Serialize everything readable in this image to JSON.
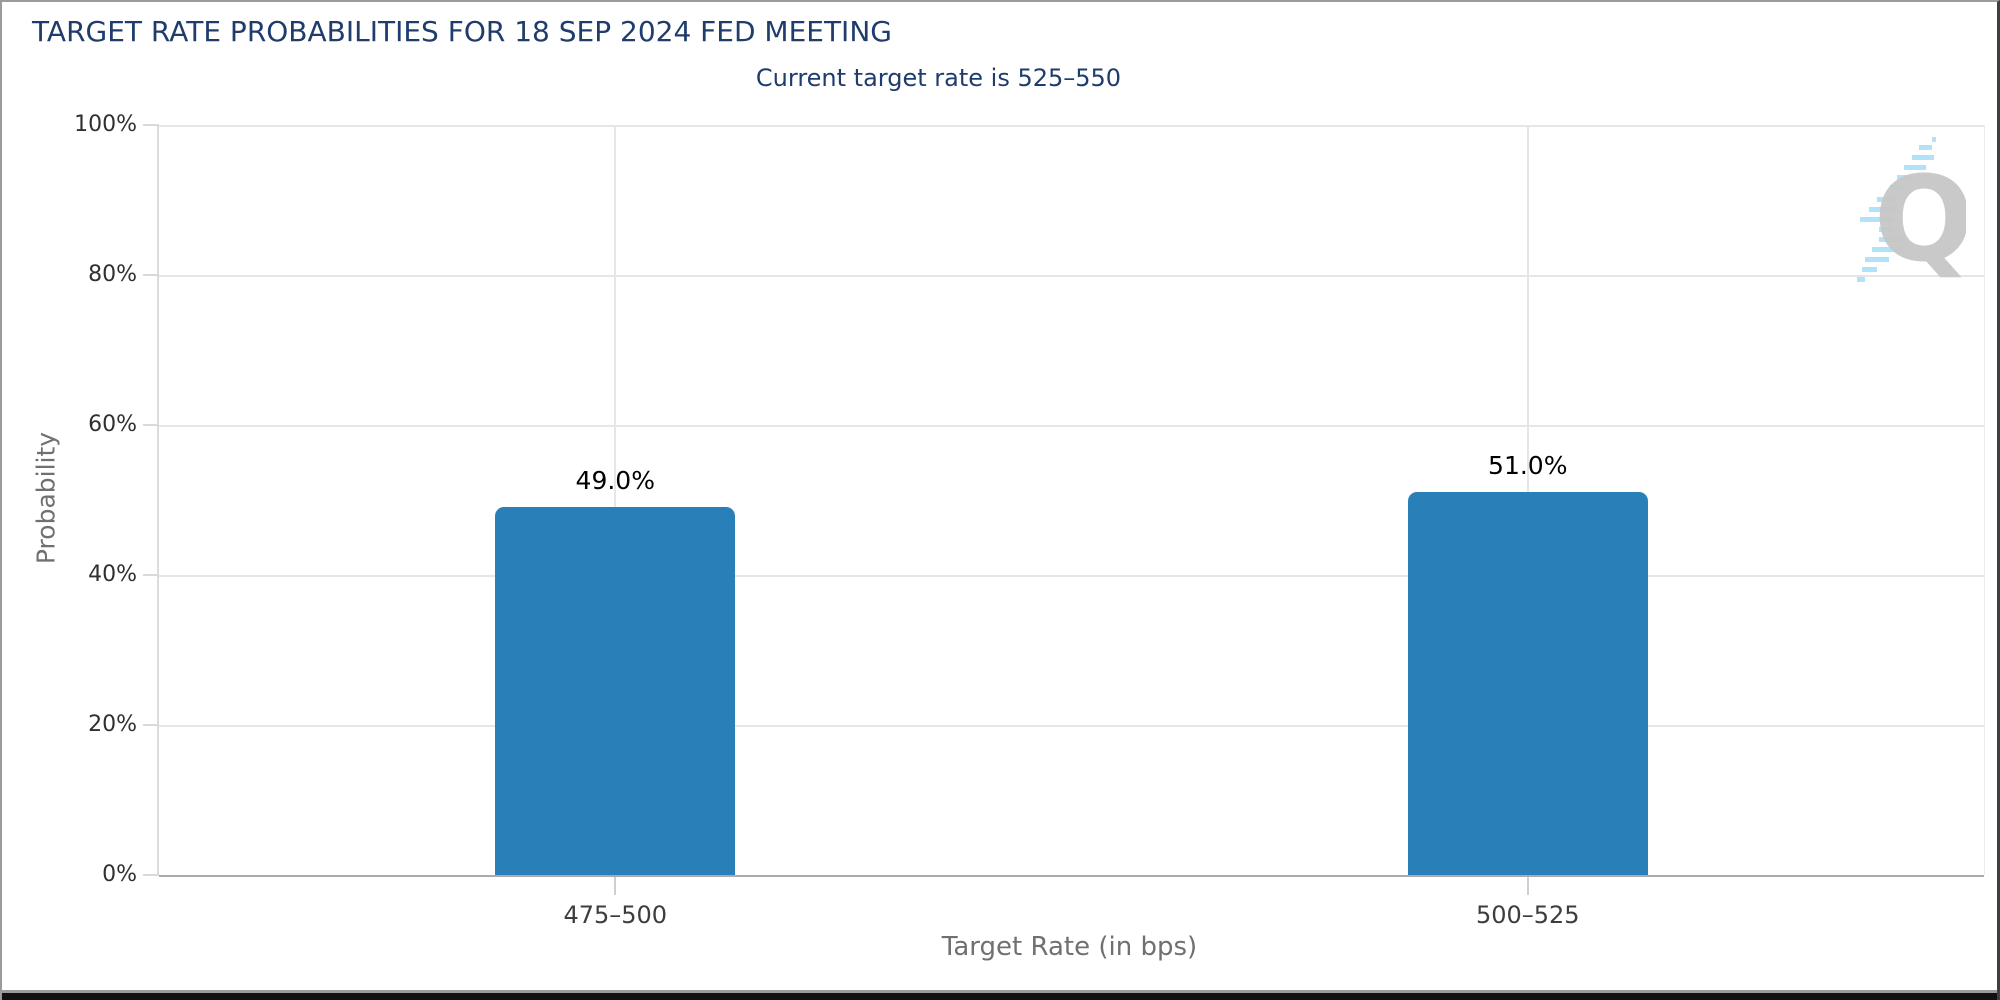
{
  "watermark": {
    "letter": "Q"
  },
  "colors": {
    "heading_navy": "#1f3c6d",
    "bar_blue": "#2980b9",
    "axis_title_gray": "#707070",
    "tick_label_dark": "#303030",
    "gridline_gray": "#e6e6e6",
    "baseline_gray": "#ababab",
    "watermark_letter_gray": "#c6c6c6",
    "watermark_dash_blue": "#9fdcf6"
  },
  "chart_data": {
    "type": "bar",
    "title": "TARGET RATE PROBABILITIES FOR 18 SEP 2024 FED MEETING",
    "subtitle": "Current target rate is 525–550",
    "categories": [
      "475–500",
      "500–525"
    ],
    "values": [
      49.0,
      51.0
    ],
    "value_labels": [
      "49.0%",
      "51.0%"
    ],
    "xlabel": "Target Rate (in bps)",
    "ylabel": "Probability",
    "ylim": [
      0,
      100
    ],
    "ytick_step": 20,
    "yticks": [
      "0%",
      "20%",
      "40%",
      "60%",
      "80%",
      "100%"
    ],
    "grid": true,
    "legend": false,
    "bar_color": "#2980b9"
  }
}
